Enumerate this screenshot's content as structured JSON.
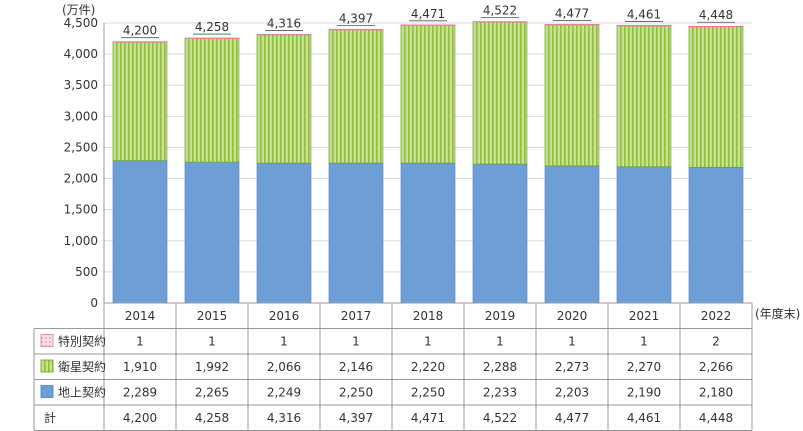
{
  "chart_data": {
    "type": "bar",
    "stacked": true,
    "unit_label": "(万件)",
    "period_label": "(年度末)",
    "categories": [
      "2014",
      "2015",
      "2016",
      "2017",
      "2018",
      "2019",
      "2020",
      "2021",
      "2022"
    ],
    "ylim": [
      0,
      4500
    ],
    "yticks": [
      "0",
      "500",
      "1,000",
      "1,500",
      "2,000",
      "2,500",
      "3,000",
      "3,500",
      "4,000",
      "4,500"
    ],
    "series": [
      {
        "name": "特別契約",
        "color": "#f9c9dc",
        "values": [
          1,
          1,
          1,
          1,
          1,
          1,
          1,
          1,
          2
        ],
        "labels": [
          "1",
          "1",
          "1",
          "1",
          "1",
          "1",
          "1",
          "1",
          "2"
        ]
      },
      {
        "name": "衛星契約",
        "color": "#b8d87a",
        "values": [
          1910,
          1992,
          2066,
          2146,
          2220,
          2288,
          2273,
          2270,
          2266
        ],
        "labels": [
          "1,910",
          "1,992",
          "2,066",
          "2,146",
          "2,220",
          "2,288",
          "2,273",
          "2,270",
          "2,266"
        ]
      },
      {
        "name": "地上契約",
        "color": "#6d9ed6",
        "values": [
          2289,
          2265,
          2249,
          2250,
          2250,
          2233,
          2203,
          2190,
          2180
        ],
        "labels": [
          "2,289",
          "2,265",
          "2,249",
          "2,250",
          "2,250",
          "2,233",
          "2,203",
          "2,190",
          "2,180"
        ]
      }
    ],
    "total_name": "計",
    "totals": [
      4200,
      4258,
      4316,
      4397,
      4471,
      4522,
      4477,
      4461,
      4448
    ],
    "total_labels": [
      "4,200",
      "4,258",
      "4,316",
      "4,397",
      "4,471",
      "4,522",
      "4,477",
      "4,461",
      "4,448"
    ]
  }
}
